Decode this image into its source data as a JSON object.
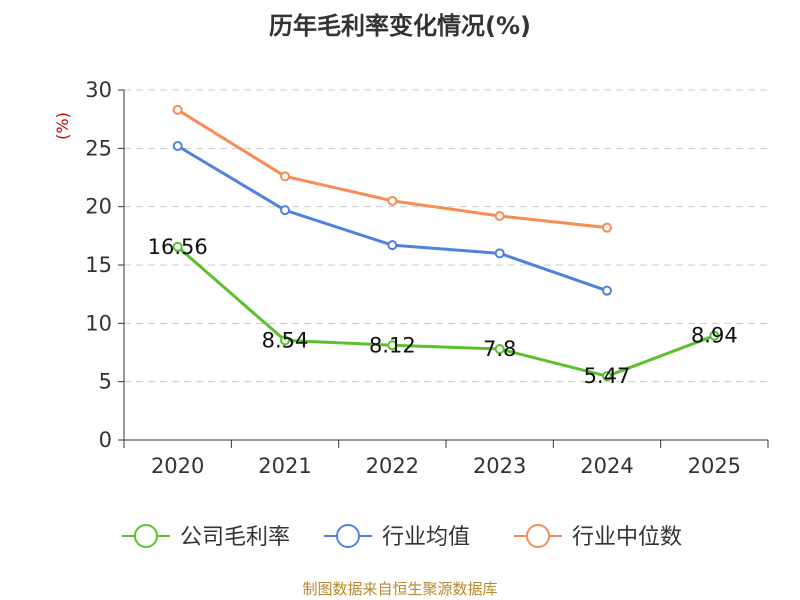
{
  "chart_data": {
    "type": "line",
    "title": "历年毛利率变化情况(%)",
    "ylabel": "(%)",
    "xlabel": "",
    "ylim": [
      0,
      30
    ],
    "yticks": [
      0,
      5,
      10,
      15,
      20,
      25,
      30
    ],
    "categories": [
      "2020",
      "2021",
      "2022",
      "2023",
      "2024",
      "2025"
    ],
    "grid": true,
    "legend_position": "bottom",
    "series": [
      {
        "name": "公司毛利率",
        "color": "#5ac02e",
        "values": [
          16.56,
          8.54,
          8.12,
          7.8,
          5.47,
          8.94
        ],
        "labels": [
          "16.56",
          "8.54",
          "8.12",
          "7.8",
          "5.47",
          "8.94"
        ]
      },
      {
        "name": "行业均值",
        "color": "#4f82dc",
        "values": [
          25.2,
          19.7,
          16.7,
          16.0,
          12.8,
          null
        ]
      },
      {
        "name": "行业中位数",
        "color": "#f58d55",
        "values": [
          28.3,
          22.6,
          20.5,
          19.2,
          18.2,
          null
        ]
      }
    ]
  },
  "source": "制图数据来自恒生聚源数据库"
}
